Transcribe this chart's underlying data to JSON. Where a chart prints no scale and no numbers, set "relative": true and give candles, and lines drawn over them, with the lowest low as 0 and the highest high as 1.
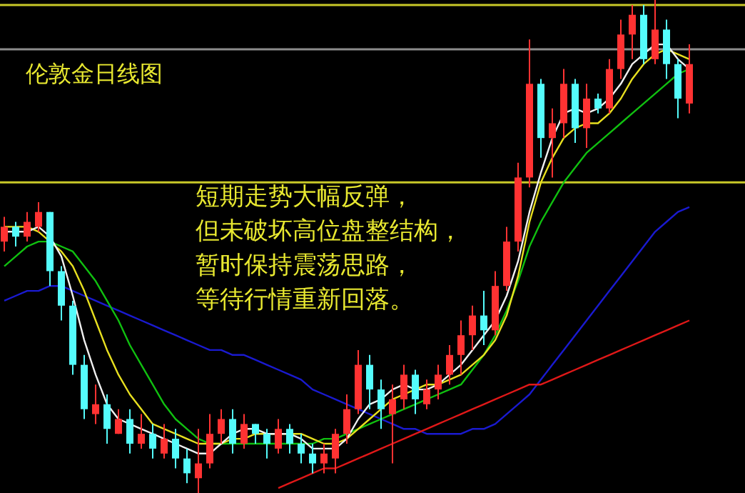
{
  "chart_data": {
    "type": "candlestick",
    "title": "伦敦金日线图",
    "annotations": [
      "短期走势大幅反弹，",
      "但未破坏高位盘整结构，",
      "暂时保持震荡思路，",
      "等待行情重新回落。"
    ],
    "relative": true,
    "categories": [
      null,
      null,
      null,
      null,
      null,
      null,
      null,
      null,
      null,
      null,
      null,
      null,
      null,
      null,
      null,
      null,
      null,
      null,
      null,
      null,
      null,
      null,
      null,
      null,
      null,
      null,
      null,
      null,
      null,
      null,
      null,
      null,
      null,
      null,
      null,
      null,
      null,
      null,
      null,
      null,
      null,
      null,
      null,
      null,
      null,
      null,
      null,
      null,
      null,
      null,
      null,
      null,
      null,
      null,
      null,
      null,
      null,
      null,
      null,
      null,
      null
    ],
    "ohlc": [
      [
        0.51,
        0.56,
        0.49,
        0.54
      ],
      [
        0.54,
        0.55,
        0.5,
        0.52
      ],
      [
        0.52,
        0.57,
        0.51,
        0.55
      ],
      [
        0.54,
        0.59,
        0.53,
        0.57
      ],
      [
        0.57,
        0.57,
        0.42,
        0.45
      ],
      [
        0.45,
        0.46,
        0.35,
        0.38
      ],
      [
        0.38,
        0.39,
        0.24,
        0.26
      ],
      [
        0.26,
        0.28,
        0.15,
        0.17
      ],
      [
        0.16,
        0.22,
        0.14,
        0.18
      ],
      [
        0.18,
        0.2,
        0.1,
        0.13
      ],
      [
        0.12,
        0.17,
        0.12,
        0.15
      ],
      [
        0.15,
        0.17,
        0.08,
        0.1
      ],
      [
        0.1,
        0.16,
        0.09,
        0.12
      ],
      [
        0.12,
        0.14,
        0.07,
        0.09
      ],
      [
        0.08,
        0.14,
        0.07,
        0.11
      ],
      [
        0.11,
        0.13,
        0.05,
        0.07
      ],
      [
        0.07,
        0.09,
        0.02,
        0.04
      ],
      [
        0.03,
        0.13,
        0,
        0.06
      ],
      [
        0.06,
        0.16,
        0.05,
        0.12
      ],
      [
        0.12,
        0.17,
        0.1,
        0.15
      ],
      [
        0.15,
        0.17,
        0.08,
        0.1
      ],
      [
        0.1,
        0.16,
        0.09,
        0.14
      ],
      [
        0.14,
        0.14,
        0.1,
        0.12
      ],
      [
        0.12,
        0.13,
        0.07,
        0.1
      ],
      [
        0.09,
        0.15,
        0.08,
        0.13
      ],
      [
        0.13,
        0.14,
        0.08,
        0.1
      ],
      [
        0.1,
        0.12,
        0.06,
        0.08
      ],
      [
        0.08,
        0.1,
        0.04,
        0.06
      ],
      [
        0.06,
        0.1,
        0.04,
        0.08
      ],
      [
        0.07,
        0.13,
        0.04,
        0.12
      ],
      [
        0.12,
        0.2,
        0.1,
        0.17
      ],
      [
        0.17,
        0.29,
        0.16,
        0.26
      ],
      [
        0.26,
        0.28,
        0.17,
        0.21
      ],
      [
        0.21,
        0.23,
        0.13,
        0.17
      ],
      [
        0.16,
        0.22,
        0.06,
        0.19
      ],
      [
        0.19,
        0.26,
        0.17,
        0.24
      ],
      [
        0.24,
        0.25,
        0.16,
        0.19
      ],
      [
        0.18,
        0.23,
        0.17,
        0.21
      ],
      [
        0.21,
        0.26,
        0.19,
        0.24
      ],
      [
        0.24,
        0.3,
        0.22,
        0.28
      ],
      [
        0.28,
        0.35,
        0.24,
        0.32
      ],
      [
        0.32,
        0.38,
        0.29,
        0.36
      ],
      [
        0.36,
        0.41,
        0.3,
        0.33
      ],
      [
        0.33,
        0.45,
        0.32,
        0.42
      ],
      [
        0.42,
        0.54,
        0.41,
        0.51
      ],
      [
        0.51,
        0.67,
        0.49,
        0.64
      ],
      [
        0.64,
        0.92,
        0.62,
        0.83
      ],
      [
        0.83,
        0.84,
        0.68,
        0.72
      ],
      [
        0.72,
        0.78,
        0.64,
        0.75
      ],
      [
        0.75,
        0.86,
        0.72,
        0.83
      ],
      [
        0.83,
        0.84,
        0.71,
        0.74
      ],
      [
        0.74,
        0.83,
        0.7,
        0.8
      ],
      [
        0.8,
        0.81,
        0.77,
        0.78
      ],
      [
        0.78,
        0.88,
        0.77,
        0.86
      ],
      [
        0.86,
        0.96,
        0.84,
        0.93
      ],
      [
        0.93,
        0.99,
        0.88,
        0.97
      ],
      [
        0.97,
        0.99,
        0.87,
        0.88
      ],
      [
        0.88,
        1,
        0.87,
        0.94
      ],
      [
        0.94,
        0.96,
        0.84,
        0.87
      ],
      [
        0.87,
        0.88,
        0.76,
        0.8
      ],
      [
        0.79,
        0.91,
        0.77,
        0.87
      ]
    ],
    "colors": [
      "#ff3232",
      "#54fcfc",
      "#ff3232",
      "#ff3232",
      "#54fcfc",
      "#54fcfc",
      "#54fcfc",
      "#54fcfc",
      "#ff3232",
      "#54fcfc",
      "#ff3232",
      "#54fcfc",
      "#ff3232",
      "#54fcfc",
      "#ff3232",
      "#54fcfc",
      "#54fcfc",
      "#ff3232",
      "#ff3232",
      "#ff3232",
      "#54fcfc",
      "#ff3232",
      "#54fcfc",
      "#54fcfc",
      "#ff3232",
      "#54fcfc",
      "#54fcfc",
      "#54fcfc",
      "#ff3232",
      "#ff3232",
      "#ff3232",
      "#ff3232",
      "#54fcfc",
      "#54fcfc",
      "#ff3232",
      "#ff3232",
      "#54fcfc",
      "#ff3232",
      "#ff3232",
      "#ff3232",
      "#ff3232",
      "#ff3232",
      "#54fcfc",
      "#ff3232",
      "#ff3232",
      "#ff3232",
      "#ff3232",
      "#54fcfc",
      "#ff3232",
      "#ff3232",
      "#54fcfc",
      "#ff3232",
      "#54fcfc",
      "#ff3232",
      "#ff3232",
      "#ff3232",
      "#54fcfc",
      "#ff3232",
      "#54fcfc",
      "#54fcfc",
      "#ff3232"
    ],
    "series": [
      {
        "type": "line",
        "color": "#1a1ad0",
        "values": [
          0.39,
          0.4,
          0.41,
          0.41,
          0.42,
          0.42,
          0.41,
          0.4,
          0.39,
          0.38,
          0.37,
          0.36,
          0.35,
          0.34,
          0.33,
          0.32,
          0.31,
          0.3,
          0.29,
          0.29,
          0.28,
          0.28,
          0.27,
          0.26,
          0.25,
          0.24,
          0.23,
          0.21,
          0.2,
          0.19,
          0.18,
          0.17,
          0.16,
          0.15,
          0.14,
          0.13,
          0.13,
          0.12,
          0.12,
          0.12,
          0.12,
          0.13,
          0.13,
          0.14,
          0.16,
          0.18,
          0.2,
          0.23,
          0.26,
          0.29,
          0.32,
          0.35,
          0.38,
          0.41,
          0.44,
          0.47,
          0.5,
          0.53,
          0.55,
          0.57,
          0.58
        ]
      },
      {
        "type": "line",
        "color": "#e01818",
        "values": [
          null,
          null,
          null,
          null,
          null,
          null,
          null,
          null,
          null,
          null,
          null,
          null,
          null,
          null,
          null,
          null,
          null,
          null,
          null,
          null,
          null,
          null,
          null,
          null,
          0.01,
          0.02,
          0.03,
          0.04,
          0.05,
          0.05,
          0.06,
          0.07,
          0.08,
          0.09,
          0.1,
          0.11,
          0.12,
          0.13,
          0.14,
          0.15,
          0.16,
          0.17,
          0.18,
          0.19,
          0.2,
          0.21,
          0.22,
          0.22,
          0.23,
          0.24,
          0.25,
          0.26,
          0.27,
          0.28,
          0.29,
          0.3,
          0.31,
          0.32,
          0.33,
          0.34,
          0.35
        ]
      },
      {
        "type": "line",
        "color": "#10c010",
        "values": [
          0.46,
          0.48,
          0.5,
          0.51,
          0.51,
          0.5,
          0.49,
          0.46,
          0.43,
          0.39,
          0.35,
          0.3,
          0.26,
          0.22,
          0.18,
          0.15,
          0.13,
          0.11,
          0.1,
          0.1,
          0.1,
          0.1,
          0.1,
          0.1,
          0.1,
          0.1,
          0.1,
          0.1,
          0.11,
          0.11,
          0.12,
          0.13,
          0.14,
          0.15,
          0.16,
          0.17,
          0.18,
          0.19,
          0.2,
          0.21,
          0.22,
          0.25,
          0.28,
          0.32,
          0.37,
          0.43,
          0.5,
          0.55,
          0.59,
          0.63,
          0.66,
          0.69,
          0.71,
          0.73,
          0.75,
          0.77,
          0.79,
          0.81,
          0.83,
          0.85,
          0.86
        ]
      },
      {
        "type": "line",
        "color": "#e8e020",
        "values": [
          0.54,
          0.54,
          0.54,
          0.53,
          0.51,
          0.49,
          0.46,
          0.41,
          0.35,
          0.29,
          0.24,
          0.2,
          0.17,
          0.14,
          0.13,
          0.12,
          0.11,
          0.1,
          0.1,
          0.1,
          0.11,
          0.11,
          0.12,
          0.12,
          0.12,
          0.12,
          0.12,
          0.11,
          0.1,
          0.1,
          0.11,
          0.13,
          0.15,
          0.17,
          0.19,
          0.2,
          0.21,
          0.22,
          0.22,
          0.23,
          0.24,
          0.26,
          0.28,
          0.31,
          0.36,
          0.44,
          0.55,
          0.63,
          0.68,
          0.72,
          0.74,
          0.75,
          0.75,
          0.77,
          0.8,
          0.84,
          0.87,
          0.89,
          0.9,
          0.89,
          0.88
        ]
      },
      {
        "type": "line",
        "color": "#f0f0f0",
        "values": [
          0.53,
          0.53,
          0.53,
          0.54,
          0.52,
          0.48,
          0.4,
          0.31,
          0.24,
          0.18,
          0.15,
          0.14,
          0.13,
          0.12,
          0.11,
          0.1,
          0.09,
          0.08,
          0.08,
          0.1,
          0.12,
          0.13,
          0.13,
          0.12,
          0.12,
          0.12,
          0.11,
          0.09,
          0.09,
          0.09,
          0.11,
          0.15,
          0.18,
          0.19,
          0.21,
          0.22,
          0.21,
          0.21,
          0.22,
          0.24,
          0.26,
          0.29,
          0.32,
          0.35,
          0.4,
          0.47,
          0.57,
          0.65,
          0.72,
          0.77,
          0.78,
          0.77,
          0.78,
          0.8,
          0.83,
          0.87,
          0.89,
          0.91,
          0.91,
          0.88,
          0.86
        ]
      }
    ],
    "ref_lines": [
      {
        "axis": "y",
        "value": 0.99,
        "color": "#c8c828"
      },
      {
        "axis": "y",
        "value": 0.9,
        "color": "#8c8c8c"
      },
      {
        "axis": "y",
        "value": 0.63,
        "color": "#c8c828"
      }
    ]
  }
}
